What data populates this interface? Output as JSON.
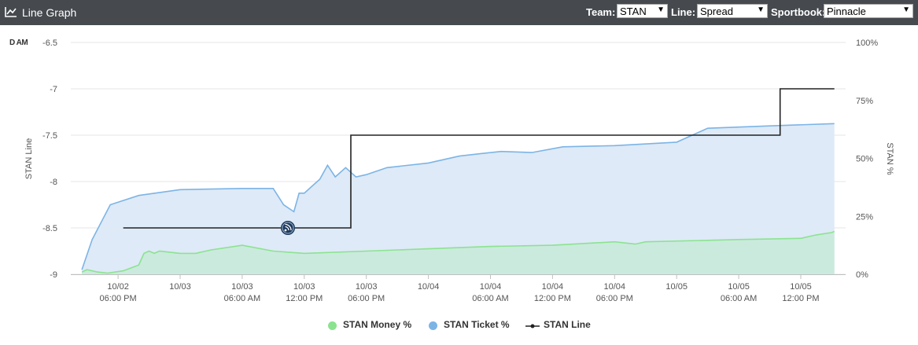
{
  "header": {
    "title": "Line Graph",
    "team_label": "Team:",
    "team_value": "STAN",
    "line_label": "Line:",
    "line_value": "Spread",
    "sportsbook_label": "Sportbook:",
    "sportsbook_value": "Pinnacle"
  },
  "corner_tag": "D AM",
  "colors": {
    "header_bg": "#464a4f",
    "money": "#8be38f",
    "money_fill": "#c9eadc",
    "ticket": "#7cb4e6",
    "ticket_fill": "#dce9f7",
    "line": "#222222"
  },
  "chart_data": {
    "type": "line",
    "title": "",
    "left_axis": {
      "label": "STAN Line",
      "ticks": [
        "-6.5",
        "-7",
        "-7.5",
        "-8",
        "-8.5",
        "-9"
      ],
      "min": -9,
      "max": -6.5
    },
    "right_axis": {
      "label": "STAN %",
      "ticks": [
        "100%",
        "75%",
        "50%",
        "25%",
        "0%"
      ],
      "min": 0,
      "max": 100
    },
    "x_axis": {
      "min": "10/02 14:00",
      "max": "10/05 15:30",
      "ticks": [
        {
          "label": [
            "10/02",
            "06:00 PM"
          ],
          "t": "10/02 18:00"
        },
        {
          "label": [
            "10/03",
            ""
          ],
          "t": "10/03 00:00"
        },
        {
          "label": [
            "10/03",
            "06:00 AM"
          ],
          "t": "10/03 06:00"
        },
        {
          "label": [
            "10/03",
            "12:00 PM"
          ],
          "t": "10/03 12:00"
        },
        {
          "label": [
            "10/03",
            "06:00 PM"
          ],
          "t": "10/03 18:00"
        },
        {
          "label": [
            "10/04",
            ""
          ],
          "t": "10/04 00:00"
        },
        {
          "label": [
            "10/04",
            "06:00 AM"
          ],
          "t": "10/04 06:00"
        },
        {
          "label": [
            "10/04",
            "12:00 PM"
          ],
          "t": "10/04 12:00"
        },
        {
          "label": [
            "10/04",
            "06:00 PM"
          ],
          "t": "10/04 18:00"
        },
        {
          "label": [
            "10/05",
            ""
          ],
          "t": "10/05 00:00"
        },
        {
          "label": [
            "10/05",
            "06:00 AM"
          ],
          "t": "10/05 06:00"
        },
        {
          "label": [
            "10/05",
            "12:00 PM"
          ],
          "t": "10/05 12:00"
        }
      ]
    },
    "grid": true,
    "legend_position": "bottom",
    "series": [
      {
        "name": "STAN Money %",
        "axis": "right",
        "type": "area",
        "points": [
          [
            "10/02 14:30",
            1
          ],
          [
            "10/02 15:00",
            2
          ],
          [
            "10/02 16:00",
            1
          ],
          [
            "10/02 17:00",
            0.5
          ],
          [
            "10/02 18:30",
            1.5
          ],
          [
            "10/02 20:00",
            4
          ],
          [
            "10/02 20:30",
            9
          ],
          [
            "10/02 21:00",
            10
          ],
          [
            "10/02 21:30",
            9
          ],
          [
            "10/02 22:00",
            10
          ],
          [
            "10/03 00:00",
            9
          ],
          [
            "10/03 01:30",
            9
          ],
          [
            "10/03 03:00",
            10.5
          ],
          [
            "10/03 06:00",
            12.5
          ],
          [
            "10/03 09:00",
            10
          ],
          [
            "10/03 12:00",
            9
          ],
          [
            "10/03 18:00",
            10
          ],
          [
            "10/04 06:00",
            12
          ],
          [
            "10/04 12:00",
            12.5
          ],
          [
            "10/04 18:00",
            14
          ],
          [
            "10/04 20:00",
            13
          ],
          [
            "10/04 21:00",
            14
          ],
          [
            "10/05 06:00",
            15
          ],
          [
            "10/05 12:00",
            15.5
          ],
          [
            "10/05 13:30",
            17
          ],
          [
            "10/05 15:00",
            18
          ],
          [
            "10/05 15:15",
            18.5
          ]
        ]
      },
      {
        "name": "STAN Ticket %",
        "axis": "right",
        "type": "area",
        "points": [
          [
            "10/02 14:30",
            2
          ],
          [
            "10/02 15:30",
            15
          ],
          [
            "10/02 17:15",
            30
          ],
          [
            "10/02 20:00",
            34
          ],
          [
            "10/03 00:00",
            36.5
          ],
          [
            "10/03 06:00",
            37
          ],
          [
            "10/03 09:00",
            37
          ],
          [
            "10/03 10:00",
            30
          ],
          [
            "10/03 11:00",
            27
          ],
          [
            "10/03 11:30",
            35
          ],
          [
            "10/03 11:45",
            35
          ],
          [
            "10/03 12:00",
            35
          ],
          [
            "10/03 12:45",
            38
          ],
          [
            "10/03 13:30",
            41
          ],
          [
            "10/03 14:15",
            47
          ],
          [
            "10/03 15:00",
            42
          ],
          [
            "10/03 16:00",
            46
          ],
          [
            "10/03 17:00",
            42
          ],
          [
            "10/03 18:00",
            43
          ],
          [
            "10/03 20:00",
            46
          ],
          [
            "10/04 00:00",
            48
          ],
          [
            "10/04 03:00",
            51
          ],
          [
            "10/04 05:00",
            52
          ],
          [
            "10/04 07:00",
            53
          ],
          [
            "10/04 10:00",
            52.5
          ],
          [
            "10/04 13:00",
            55
          ],
          [
            "10/04 18:00",
            55.5
          ],
          [
            "10/05 00:00",
            57
          ],
          [
            "10/05 03:00",
            63
          ],
          [
            "10/05 09:00",
            64
          ],
          [
            "10/05 15:15",
            65
          ]
        ]
      },
      {
        "name": "STAN Line",
        "axis": "left",
        "type": "step",
        "points": [
          [
            "10/02 18:30",
            -8.5
          ],
          [
            "10/03 16:30",
            -8.5
          ],
          [
            "10/03 16:30",
            -7.5
          ],
          [
            "10/05 10:00",
            -7.5
          ],
          [
            "10/05 10:00",
            -7
          ],
          [
            "10/05 15:15",
            -7
          ]
        ]
      }
    ]
  }
}
